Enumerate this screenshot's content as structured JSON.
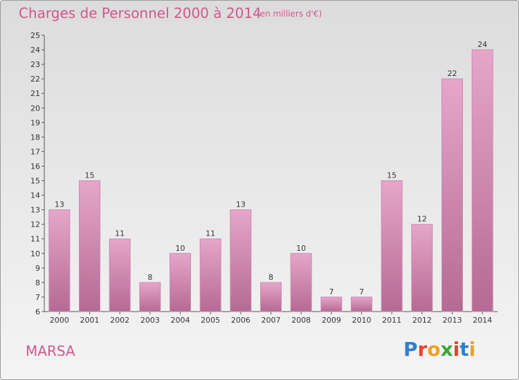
{
  "header": {
    "title": "Charges de Personnel 2000 à 2014",
    "subtitle": "(en milliers d'€)"
  },
  "footer": {
    "commune": "MARSA",
    "logo_text": "Proxiti"
  },
  "colors": {
    "title": "#d0588a",
    "bar_top": "#e6a6c9",
    "bar_bottom": "#b56a93",
    "bar_edge": "#c98cb0"
  },
  "chart_data": {
    "type": "bar",
    "title": "Charges de Personnel 2000 à 2014",
    "subtitle": "(en milliers d'€)",
    "categories": [
      "2000",
      "2001",
      "2002",
      "2003",
      "2004",
      "2005",
      "2006",
      "2007",
      "2008",
      "2009",
      "2010",
      "2011",
      "2012",
      "2013",
      "2014"
    ],
    "values": [
      13,
      15,
      11,
      8,
      10,
      11,
      13,
      8,
      10,
      7,
      7,
      15,
      12,
      22,
      24
    ],
    "ylim": [
      6,
      25
    ],
    "yticks": [
      6,
      7,
      8,
      9,
      10,
      11,
      12,
      13,
      14,
      15,
      16,
      17,
      18,
      19,
      20,
      21,
      22,
      23,
      24,
      25
    ],
    "grid": false,
    "data_labels": true
  }
}
